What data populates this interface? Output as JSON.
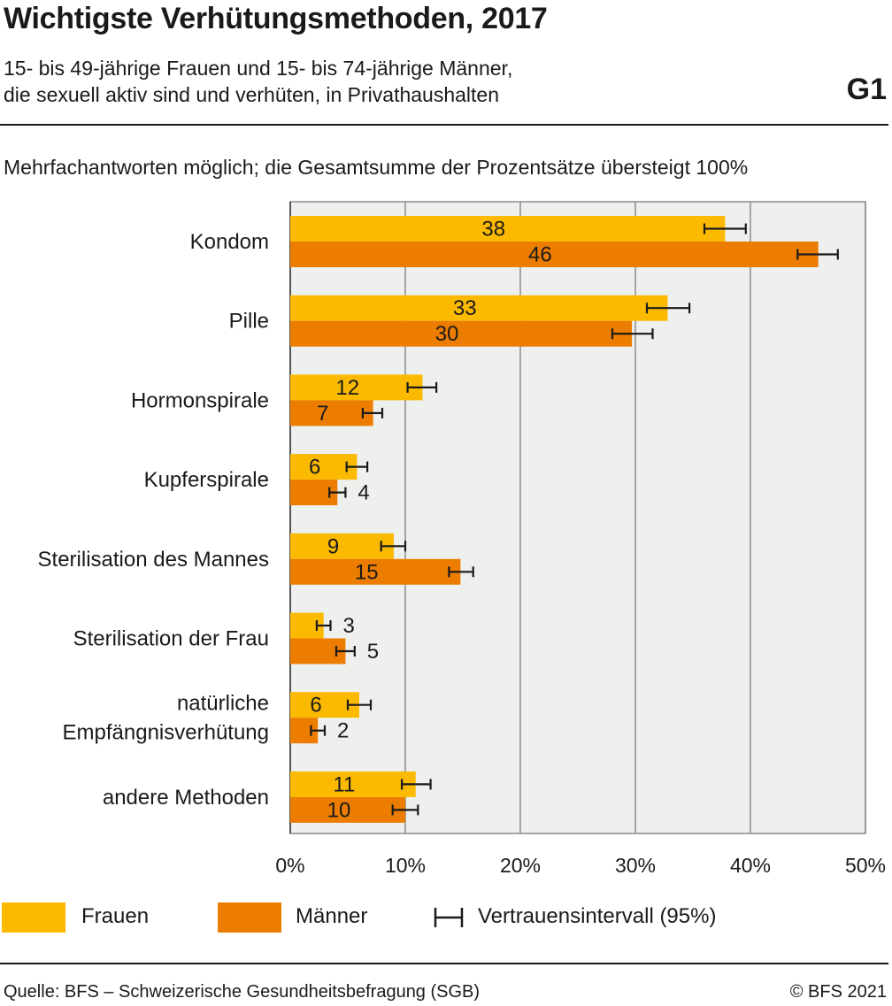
{
  "header": {
    "title": "Wichtigste Verhütungsmethoden, 2017",
    "subtitle_line1": "15- bis 49-jährige Frauen und 15- bis 74-jährige Männer,",
    "subtitle_line2": "die sexuell aktiv sind und verhüten, in Privathaushalten",
    "graph_number": "G1"
  },
  "note": "Mehrfachantworten möglich; die Gesamtsumme der Prozentsätze übersteigt 100%",
  "legend": {
    "frauen": "Frauen",
    "maenner": "Männer",
    "ci": "Vertrauensintervall (95%)"
  },
  "footer": {
    "source": "Quelle: BFS – Schweizerische Gesundheitsbefragung (SGB)",
    "copyright": "© BFS 2021"
  },
  "colors": {
    "frauen": "#FBBA00",
    "maenner": "#EC7D00",
    "plot_bg": "#EEF0EE",
    "grid": "#8C8C8C"
  },
  "chart_data": {
    "type": "bar",
    "orientation": "horizontal",
    "categories": [
      [
        "Kondom"
      ],
      [
        "Pille"
      ],
      [
        "Hormonspirale"
      ],
      [
        "Kupferspirale"
      ],
      [
        "Sterilisation des Mannes"
      ],
      [
        "Sterilisation der Frau"
      ],
      [
        "natürliche",
        "Empfängnisverhütung"
      ],
      [
        "andere Methoden"
      ]
    ],
    "series": [
      {
        "name": "Frauen",
        "values": [
          38,
          33,
          12,
          6,
          9,
          3,
          6,
          11
        ],
        "value_labels": [
          "38",
          "33",
          "12",
          "6",
          "9",
          "3",
          "6",
          "11"
        ],
        "exact_values": [
          37.8,
          32.8,
          11.5,
          5.8,
          9.0,
          2.9,
          6.0,
          10.9
        ],
        "ci_low": [
          36.0,
          31.0,
          10.2,
          4.9,
          7.9,
          2.3,
          5.0,
          9.7
        ],
        "ci_high": [
          39.6,
          34.7,
          12.7,
          6.7,
          10.0,
          3.5,
          7.0,
          12.2
        ]
      },
      {
        "name": "Männer",
        "values": [
          46,
          30,
          7,
          4,
          15,
          5,
          2,
          10
        ],
        "value_labels": [
          "46",
          "30",
          "7",
          "4",
          "15",
          "5",
          "2",
          "10"
        ],
        "exact_values": [
          45.9,
          29.7,
          7.2,
          4.1,
          14.8,
          4.8,
          2.4,
          10.0
        ],
        "ci_low": [
          44.1,
          28.0,
          6.3,
          3.4,
          13.8,
          4.0,
          1.8,
          8.9
        ],
        "ci_high": [
          47.6,
          31.5,
          8.0,
          4.8,
          15.9,
          5.6,
          3.0,
          11.1
        ]
      }
    ],
    "xlim": [
      0,
      50
    ],
    "xticks": [
      0,
      10,
      20,
      30,
      40,
      50
    ],
    "xtick_labels": [
      "0%",
      "10%",
      "20%",
      "30%",
      "40%",
      "50%"
    ],
    "grid": true,
    "legend_position": "bottom",
    "error_bars": "Vertrauensintervall (95%)"
  }
}
